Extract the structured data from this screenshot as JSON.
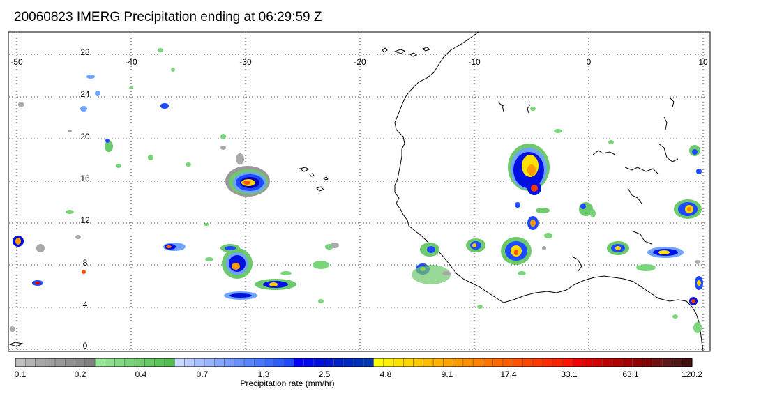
{
  "title": "20060823 IMERG Precipitation ending at 06:29:59 Z",
  "map": {
    "lon_labels": [
      "-50",
      "-40",
      "-30",
      "-20",
      "-10",
      "0",
      "10"
    ],
    "lat_labels": [
      "28",
      "24",
      "20",
      "16",
      "12",
      "8",
      "4",
      "0"
    ]
  },
  "colorbar": {
    "label": "Precipitation rate (mm/hr)",
    "tick_labels": [
      "0.1",
      "0.2",
      "0.4",
      "0.7",
      "1.3",
      "2.5",
      "4.8",
      "9.1",
      "17.4",
      "33.1",
      "63.1",
      "120.2"
    ],
    "colors": [
      "#bfbfbf",
      "#b3b3b3",
      "#a8a8a8",
      "#a0a0a0",
      "#989898",
      "#909090",
      "#888888",
      "#808080",
      "#98e698",
      "#8ee08e",
      "#84da84",
      "#7ad47a",
      "#70ce70",
      "#66c866",
      "#5cc25c",
      "#52bc52",
      "#c8d8ff",
      "#b8ccff",
      "#a8c0ff",
      "#98b4ff",
      "#88a8ff",
      "#789cff",
      "#6890ff",
      "#5884ff",
      "#4a78ff",
      "#3c6cff",
      "#2e5eff",
      "#1e4aff",
      "#0000ff",
      "#0008f0",
      "#0010e0",
      "#0018d0",
      "#0020c8",
      "#0028c0",
      "#0030b8",
      "#0038b0",
      "#ffff00",
      "#ffee00",
      "#ffe200",
      "#ffd600",
      "#ffca00",
      "#ffbe00",
      "#ffb200",
      "#ffa600",
      "#ff9a00",
      "#ff8e00",
      "#ff8200",
      "#ff7600",
      "#ff6a00",
      "#ff5e00",
      "#ff5200",
      "#ff4600",
      "#ff3a00",
      "#ff2e00",
      "#ff2200",
      "#ff1600",
      "#f00000",
      "#e00000",
      "#d00000",
      "#c00000",
      "#b00000",
      "#a00000",
      "#900000",
      "#800000",
      "#701010",
      "#601818",
      "#501818",
      "#401010"
    ]
  }
}
